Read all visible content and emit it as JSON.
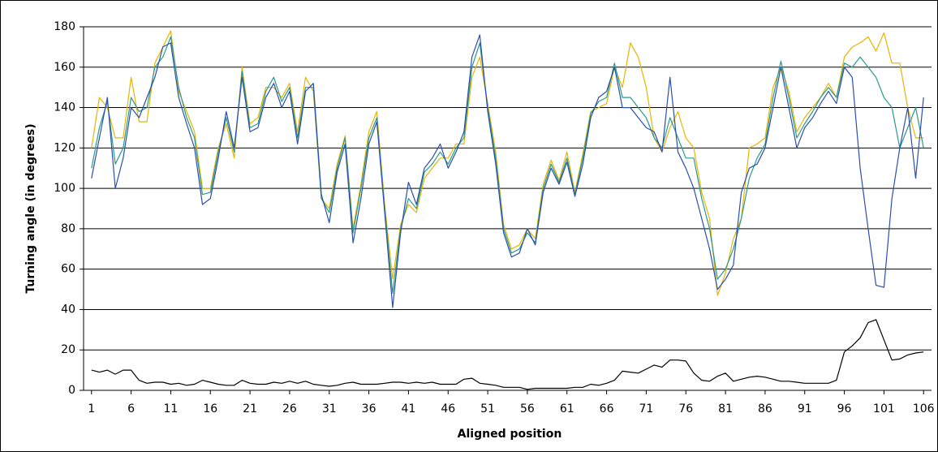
{
  "chart_data": {
    "type": "line",
    "xlabel": "Aligned position",
    "ylabel": "Turning angle (in degrees)",
    "x": [
      1,
      2,
      3,
      4,
      5,
      6,
      7,
      8,
      9,
      10,
      11,
      12,
      13,
      14,
      15,
      16,
      17,
      18,
      19,
      20,
      21,
      22,
      23,
      24,
      25,
      26,
      27,
      28,
      29,
      30,
      31,
      32,
      33,
      34,
      35,
      36,
      37,
      38,
      39,
      40,
      41,
      42,
      43,
      44,
      45,
      46,
      47,
      48,
      49,
      50,
      51,
      52,
      53,
      54,
      55,
      56,
      57,
      58,
      59,
      60,
      61,
      62,
      63,
      64,
      65,
      66,
      67,
      68,
      69,
      70,
      71,
      72,
      73,
      74,
      75,
      76,
      77,
      78,
      79,
      80,
      81,
      82,
      83,
      84,
      85,
      86,
      87,
      88,
      89,
      90,
      91,
      92,
      93,
      94,
      95,
      96,
      97,
      98,
      99,
      100,
      101,
      102,
      103,
      104,
      105,
      106
    ],
    "xlim": [
      0,
      107
    ],
    "xticks": [
      1,
      6,
      11,
      16,
      21,
      26,
      31,
      36,
      41,
      46,
      51,
      56,
      61,
      66,
      71,
      76,
      81,
      86,
      91,
      96,
      101,
      106
    ],
    "ylim": [
      0,
      180
    ],
    "yticks": [
      0,
      20,
      40,
      60,
      80,
      100,
      120,
      140,
      160,
      180
    ],
    "grid": true,
    "series": [
      {
        "color": "#e8b400",
        "values": [
          120,
          145,
          140,
          125,
          125,
          155,
          133,
          133,
          162,
          170,
          178,
          148,
          138,
          128,
          100,
          100,
          120,
          132,
          115,
          160,
          132,
          135,
          150,
          150,
          145,
          152,
          128,
          155,
          148,
          95,
          90,
          112,
          126,
          80,
          102,
          128,
          138,
          92,
          55,
          82,
          92,
          88,
          105,
          110,
          115,
          115,
          122,
          122,
          155,
          165,
          142,
          118,
          82,
          70,
          72,
          80,
          75,
          102,
          114,
          104,
          118,
          98,
          117,
          138,
          140,
          142,
          160,
          150,
          172,
          165,
          150,
          125,
          118,
          130,
          138,
          125,
          120,
          98,
          85,
          47,
          58,
          75,
          85,
          120,
          122,
          125,
          150,
          160,
          148,
          128,
          135,
          140,
          145,
          152,
          145,
          165,
          170,
          172,
          175,
          168,
          177,
          162,
          162,
          140,
          125,
          125
        ]
      },
      {
        "color": "#2a9a8a",
        "values": [
          110,
          130,
          143,
          112,
          120,
          145,
          138,
          140,
          160,
          165,
          175,
          150,
          135,
          125,
          97,
          98,
          118,
          135,
          118,
          158,
          130,
          132,
          148,
          155,
          143,
          150,
          125,
          150,
          150,
          95,
          88,
          110,
          125,
          78,
          100,
          125,
          135,
          90,
          48,
          80,
          95,
          90,
          108,
          112,
          118,
          112,
          120,
          125,
          160,
          172,
          140,
          115,
          80,
          68,
          70,
          78,
          73,
          100,
          112,
          103,
          115,
          97,
          115,
          137,
          143,
          145,
          162,
          145,
          145,
          140,
          135,
          125,
          120,
          135,
          125,
          115,
          115,
          95,
          80,
          55,
          60,
          70,
          85,
          105,
          115,
          122,
          145,
          163,
          145,
          125,
          132,
          138,
          145,
          150,
          145,
          162,
          160,
          165,
          160,
          155,
          145,
          140,
          120,
          130,
          140,
          120
        ]
      },
      {
        "color": "#2b4fb0",
        "values": [
          105,
          125,
          145,
          100,
          115,
          140,
          135,
          145,
          155,
          170,
          172,
          145,
          132,
          120,
          92,
          95,
          115,
          138,
          120,
          155,
          128,
          130,
          145,
          152,
          140,
          148,
          122,
          148,
          152,
          97,
          83,
          108,
          122,
          73,
          95,
          122,
          133,
          88,
          41,
          78,
          103,
          92,
          110,
          115,
          122,
          110,
          118,
          128,
          165,
          176,
          138,
          112,
          78,
          66,
          68,
          80,
          72,
          98,
          110,
          102,
          113,
          96,
          112,
          135,
          145,
          148,
          160,
          140,
          140,
          135,
          130,
          128,
          118,
          155,
          118,
          110,
          100,
          85,
          70,
          50,
          55,
          62,
          98,
          110,
          112,
          120,
          140,
          160,
          140,
          120,
          130,
          135,
          142,
          148,
          142,
          160,
          155,
          110,
          80,
          52,
          51,
          95,
          120,
          140,
          105,
          145
        ]
      },
      {
        "color": "#000000",
        "values": [
          10,
          9,
          10,
          8,
          10,
          10,
          5,
          3.5,
          4,
          4,
          3,
          3.5,
          2.5,
          3,
          5,
          4,
          3,
          2.5,
          2.5,
          5,
          3.5,
          3,
          3,
          4,
          3.5,
          4.5,
          3.5,
          4.5,
          3,
          2.5,
          2,
          2.5,
          3.5,
          4,
          3,
          3,
          3,
          3.5,
          4,
          4,
          3.5,
          4,
          3.5,
          4,
          3,
          3,
          3,
          5.5,
          6,
          3.5,
          3,
          2.5,
          1.5,
          1.5,
          1.5,
          0.5,
          1,
          1,
          1,
          1,
          1,
          1.5,
          1.5,
          3,
          2.5,
          3.5,
          5,
          9.5,
          9,
          8.5,
          10.5,
          12.5,
          11.5,
          15,
          15,
          14.5,
          8.5,
          5,
          4.5,
          7,
          8.5,
          4.5,
          5.5,
          6.5,
          7,
          6.5,
          5.5,
          4.5,
          4.5,
          4,
          3.5,
          3.5,
          3.5,
          3.5,
          5,
          19,
          22,
          26,
          33.5,
          35,
          25,
          15,
          15.5,
          17.5,
          18.5,
          19
        ]
      }
    ]
  }
}
